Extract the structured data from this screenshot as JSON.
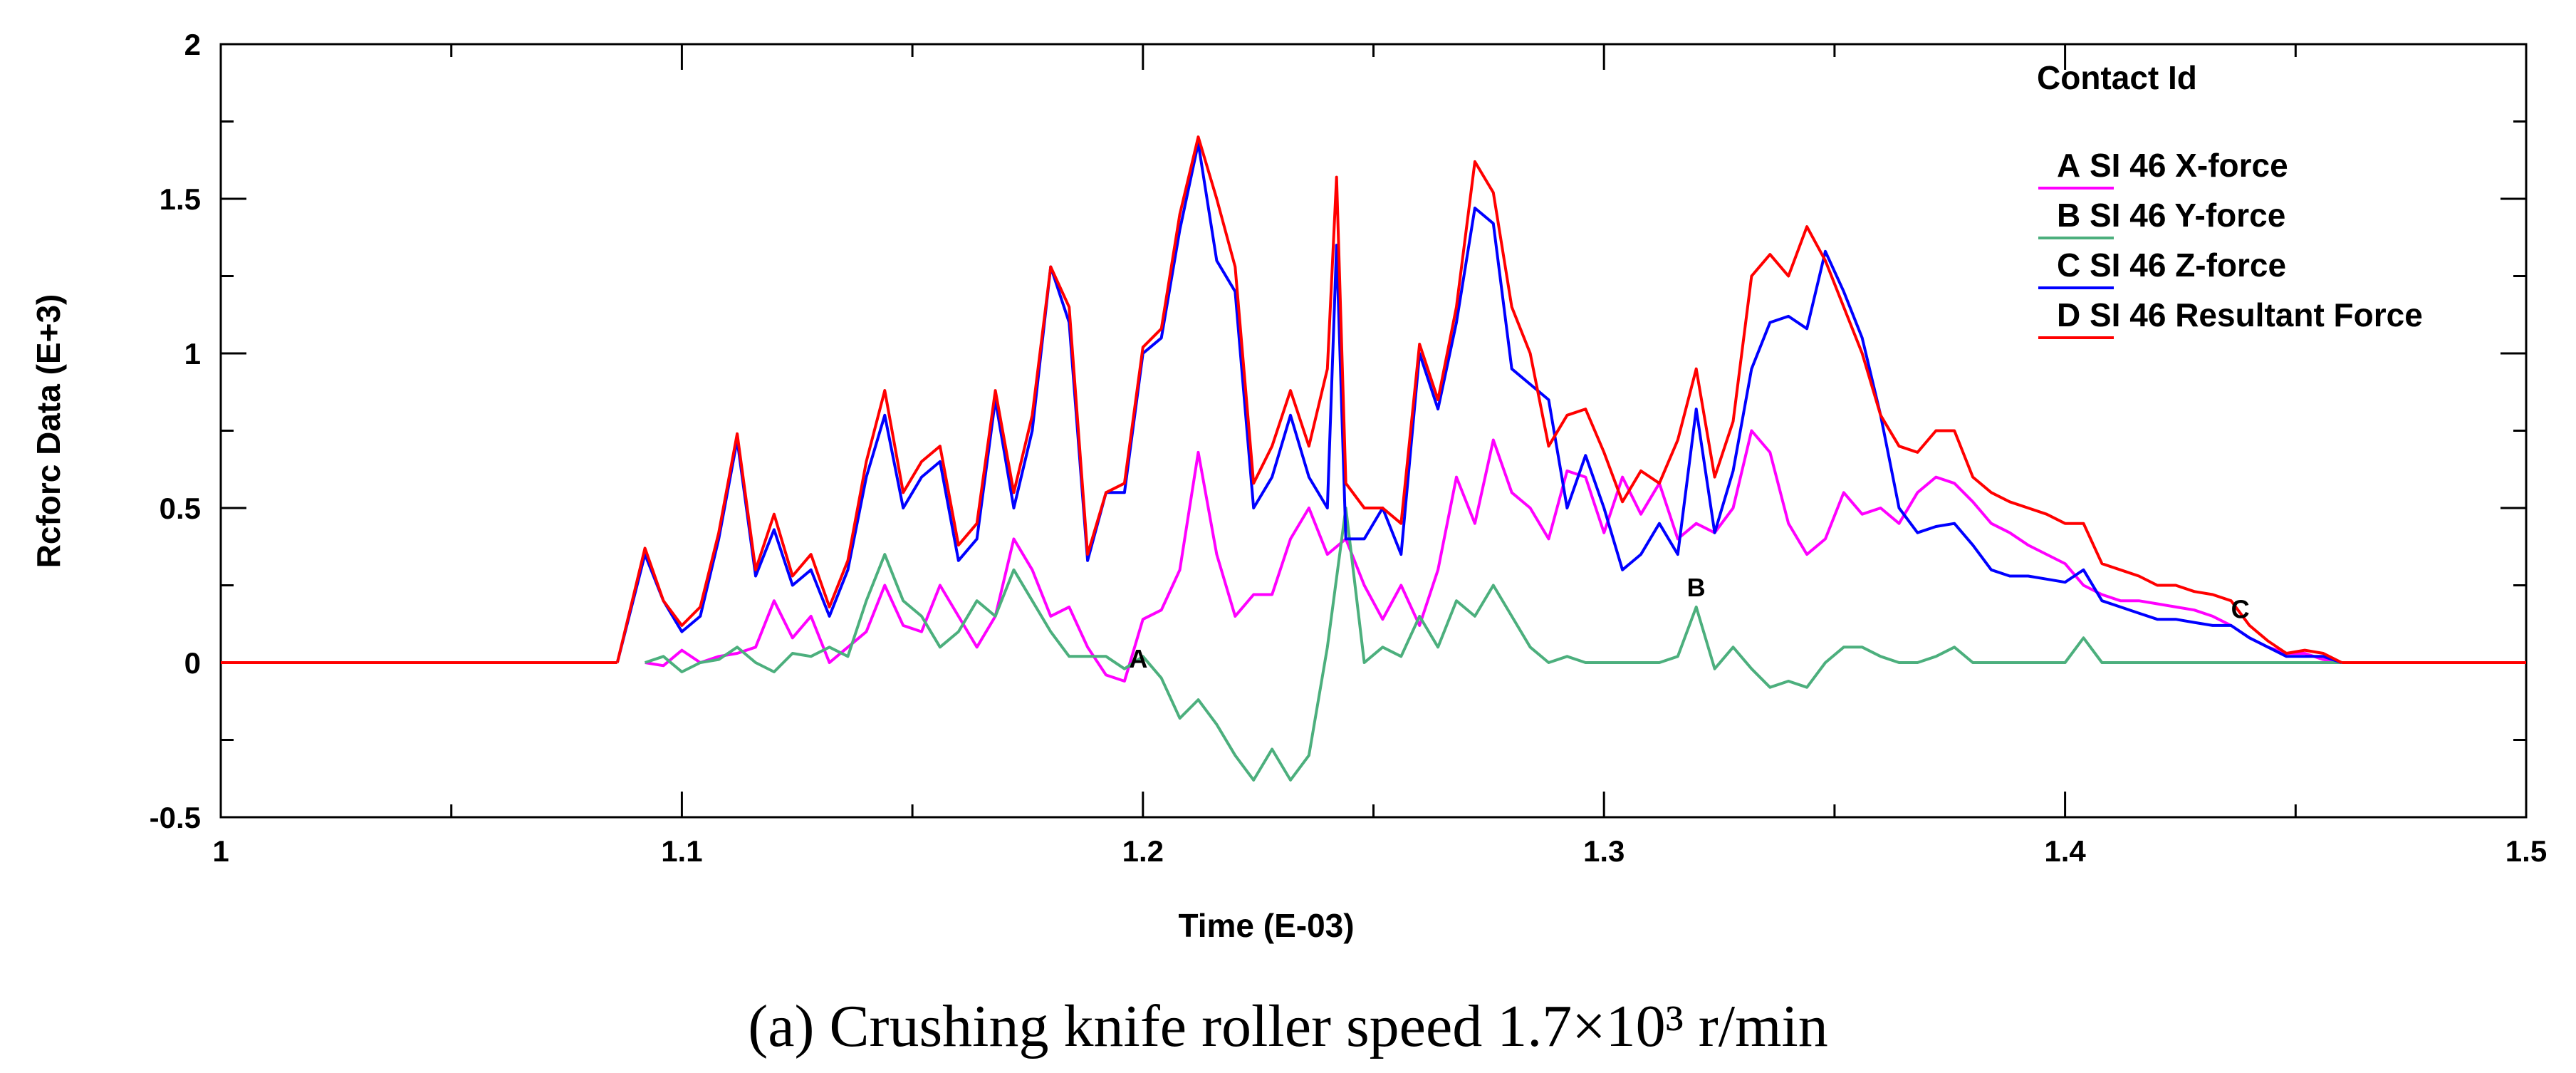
{
  "chart_data": {
    "type": "line",
    "xlabel": "Time (E-03)",
    "ylabel": "Rcforc Data (E+3)",
    "xlim": [
      1,
      1.5
    ],
    "ylim": [
      -0.5,
      2
    ],
    "xticks": [
      "1",
      "1.1",
      "1.2",
      "1.3",
      "1.4",
      "1.5"
    ],
    "yticks": [
      "-0.5",
      "0",
      "0.5",
      "1",
      "1.5",
      "2"
    ],
    "xtick_values": [
      1,
      1.1,
      1.2,
      1.3,
      1.4,
      1.5
    ],
    "ytick_values": [
      -0.5,
      0,
      0.5,
      1,
      1.5,
      2
    ],
    "legend_title": "Contact Id",
    "legend_position": "top-right",
    "caption": "(a) Crushing knife roller speed 1.7×10³ r/min",
    "series": [
      {
        "name": "SI 46 X-force",
        "letter": "A",
        "color": "#ff00ff",
        "marker_label": {
          "text": "A",
          "x": 1.199,
          "y": -0.03
        },
        "x": [
          1.092,
          1.096,
          1.1,
          1.104,
          1.108,
          1.112,
          1.116,
          1.12,
          1.124,
          1.128,
          1.132,
          1.136,
          1.14,
          1.144,
          1.148,
          1.152,
          1.156,
          1.16,
          1.164,
          1.168,
          1.172,
          1.176,
          1.18,
          1.184,
          1.188,
          1.192,
          1.196,
          1.2,
          1.204,
          1.208,
          1.212,
          1.216,
          1.22,
          1.224,
          1.228,
          1.232,
          1.236,
          1.24,
          1.244,
          1.248,
          1.252,
          1.256,
          1.26,
          1.264,
          1.268,
          1.272,
          1.276,
          1.28,
          1.284,
          1.288,
          1.292,
          1.296,
          1.3,
          1.304,
          1.308,
          1.312,
          1.316,
          1.32,
          1.324,
          1.328,
          1.332,
          1.336,
          1.34,
          1.344,
          1.348,
          1.352,
          1.356,
          1.36,
          1.364,
          1.368,
          1.372,
          1.376,
          1.38,
          1.384,
          1.388,
          1.392,
          1.396,
          1.4,
          1.404,
          1.408,
          1.412,
          1.416,
          1.42,
          1.424,
          1.428,
          1.432,
          1.436,
          1.44,
          1.444,
          1.448,
          1.452,
          1.456,
          1.46
        ],
        "values": [
          0,
          -0.01,
          0.04,
          0,
          0.02,
          0.03,
          0.05,
          0.2,
          0.08,
          0.15,
          0,
          0.05,
          0.1,
          0.25,
          0.12,
          0.1,
          0.25,
          0.15,
          0.05,
          0.15,
          0.4,
          0.3,
          0.15,
          0.18,
          0.05,
          -0.04,
          -0.06,
          0.14,
          0.17,
          0.3,
          0.68,
          0.35,
          0.15,
          0.22,
          0.22,
          0.4,
          0.5,
          0.35,
          0.4,
          0.25,
          0.14,
          0.25,
          0.12,
          0.3,
          0.6,
          0.45,
          0.72,
          0.55,
          0.5,
          0.4,
          0.62,
          0.6,
          0.42,
          0.6,
          0.48,
          0.58,
          0.4,
          0.45,
          0.42,
          0.5,
          0.75,
          0.68,
          0.45,
          0.35,
          0.4,
          0.55,
          0.48,
          0.5,
          0.45,
          0.55,
          0.6,
          0.58,
          0.52,
          0.45,
          0.42,
          0.38,
          0.35,
          0.32,
          0.25,
          0.22,
          0.2,
          0.2,
          0.19,
          0.18,
          0.17,
          0.15,
          0.12,
          0.08,
          0.05,
          0.03,
          0.03,
          0.01,
          0
        ]
      },
      {
        "name": "SI 46 Y-force",
        "letter": "B",
        "color": "#4caf7d",
        "marker_label": {
          "text": "B",
          "x": 1.32,
          "y": 0.2
        },
        "x": [
          1.092,
          1.096,
          1.1,
          1.104,
          1.108,
          1.112,
          1.116,
          1.12,
          1.124,
          1.128,
          1.132,
          1.136,
          1.14,
          1.144,
          1.148,
          1.152,
          1.156,
          1.16,
          1.164,
          1.168,
          1.172,
          1.176,
          1.18,
          1.184,
          1.188,
          1.192,
          1.196,
          1.2,
          1.204,
          1.208,
          1.212,
          1.216,
          1.22,
          1.224,
          1.228,
          1.232,
          1.236,
          1.24,
          1.244,
          1.248,
          1.252,
          1.256,
          1.26,
          1.264,
          1.268,
          1.272,
          1.276,
          1.28,
          1.284,
          1.288,
          1.292,
          1.296,
          1.3,
          1.304,
          1.308,
          1.312,
          1.316,
          1.32,
          1.324,
          1.328,
          1.332,
          1.336,
          1.34,
          1.344,
          1.348,
          1.352,
          1.356,
          1.36,
          1.364,
          1.368,
          1.372,
          1.376,
          1.38,
          1.384,
          1.388,
          1.392,
          1.396,
          1.4,
          1.404,
          1.408,
          1.412,
          1.416,
          1.42,
          1.424,
          1.428,
          1.432,
          1.436,
          1.44,
          1.444,
          1.448,
          1.452,
          1.456,
          1.46
        ],
        "values": [
          0,
          0.02,
          -0.03,
          0,
          0.01,
          0.05,
          0,
          -0.03,
          0.03,
          0.02,
          0.05,
          0.02,
          0.2,
          0.35,
          0.2,
          0.15,
          0.05,
          0.1,
          0.2,
          0.15,
          0.3,
          0.2,
          0.1,
          0.02,
          0.02,
          0.02,
          -0.02,
          0.02,
          -0.05,
          -0.18,
          -0.12,
          -0.2,
          -0.3,
          -0.38,
          -0.28,
          -0.38,
          -0.3,
          0.05,
          0.5,
          0,
          0.05,
          0.02,
          0.15,
          0.05,
          0.2,
          0.15,
          0.25,
          0.15,
          0.05,
          0,
          0.02,
          0,
          0,
          0,
          0,
          0,
          0.02,
          0.18,
          -0.02,
          0.05,
          -0.02,
          -0.08,
          -0.06,
          -0.08,
          0,
          0.05,
          0.05,
          0.02,
          0,
          0,
          0.02,
          0.05,
          0,
          0,
          0,
          0,
          0,
          0,
          0.08,
          0,
          0,
          0,
          0,
          0,
          0,
          0,
          0,
          0,
          0,
          0,
          0,
          0,
          0
        ]
      },
      {
        "name": "SI 46 Z-force",
        "letter": "C",
        "color": "#0000ff",
        "marker_label": {
          "text": "C",
          "x": 1.438,
          "y": 0.13
        },
        "x": [
          1.086,
          1.092,
          1.096,
          1.1,
          1.104,
          1.108,
          1.112,
          1.116,
          1.12,
          1.124,
          1.128,
          1.132,
          1.136,
          1.14,
          1.144,
          1.148,
          1.152,
          1.156,
          1.16,
          1.164,
          1.168,
          1.172,
          1.176,
          1.18,
          1.184,
          1.188,
          1.192,
          1.196,
          1.2,
          1.204,
          1.208,
          1.212,
          1.216,
          1.22,
          1.224,
          1.228,
          1.232,
          1.236,
          1.24,
          1.242,
          1.244,
          1.248,
          1.252,
          1.256,
          1.26,
          1.264,
          1.268,
          1.272,
          1.276,
          1.28,
          1.284,
          1.288,
          1.292,
          1.296,
          1.3,
          1.304,
          1.308,
          1.312,
          1.316,
          1.32,
          1.324,
          1.328,
          1.332,
          1.336,
          1.34,
          1.344,
          1.348,
          1.352,
          1.356,
          1.36,
          1.364,
          1.368,
          1.372,
          1.376,
          1.38,
          1.384,
          1.388,
          1.392,
          1.396,
          1.4,
          1.404,
          1.408,
          1.412,
          1.416,
          1.42,
          1.424,
          1.428,
          1.432,
          1.436,
          1.44,
          1.444,
          1.448,
          1.452,
          1.456,
          1.46
        ],
        "values": [
          0,
          0.35,
          0.2,
          0.1,
          0.15,
          0.4,
          0.72,
          0.28,
          0.43,
          0.25,
          0.3,
          0.15,
          0.3,
          0.6,
          0.8,
          0.5,
          0.6,
          0.65,
          0.33,
          0.4,
          0.85,
          0.5,
          0.75,
          1.28,
          1.1,
          0.33,
          0.55,
          0.55,
          1.0,
          1.05,
          1.4,
          1.68,
          1.3,
          1.2,
          0.5,
          0.6,
          0.8,
          0.6,
          0.5,
          1.35,
          0.4,
          0.4,
          0.5,
          0.35,
          1.0,
          0.82,
          1.1,
          1.47,
          1.42,
          0.95,
          0.9,
          0.85,
          0.5,
          0.67,
          0.5,
          0.3,
          0.35,
          0.45,
          0.35,
          0.82,
          0.42,
          0.62,
          0.95,
          1.1,
          1.12,
          1.08,
          1.33,
          1.2,
          1.05,
          0.8,
          0.5,
          0.42,
          0.44,
          0.45,
          0.38,
          0.3,
          0.28,
          0.28,
          0.27,
          0.26,
          0.3,
          0.2,
          0.18,
          0.16,
          0.14,
          0.14,
          0.13,
          0.12,
          0.12,
          0.08,
          0.05,
          0.02,
          0.02,
          0.02,
          0
        ]
      },
      {
        "name": "SI 46 Resultant Force",
        "letter": "D",
        "color": "#ff0000",
        "marker_label": null,
        "x": [
          1.086,
          1.092,
          1.096,
          1.1,
          1.104,
          1.108,
          1.112,
          1.116,
          1.12,
          1.124,
          1.128,
          1.132,
          1.136,
          1.14,
          1.144,
          1.148,
          1.152,
          1.156,
          1.16,
          1.164,
          1.168,
          1.172,
          1.176,
          1.18,
          1.184,
          1.188,
          1.192,
          1.196,
          1.2,
          1.204,
          1.208,
          1.212,
          1.216,
          1.22,
          1.224,
          1.228,
          1.232,
          1.236,
          1.24,
          1.242,
          1.244,
          1.248,
          1.252,
          1.256,
          1.26,
          1.264,
          1.268,
          1.272,
          1.276,
          1.28,
          1.284,
          1.288,
          1.292,
          1.296,
          1.3,
          1.304,
          1.308,
          1.312,
          1.316,
          1.32,
          1.324,
          1.328,
          1.332,
          1.336,
          1.34,
          1.344,
          1.348,
          1.352,
          1.356,
          1.36,
          1.364,
          1.368,
          1.372,
          1.376,
          1.38,
          1.384,
          1.388,
          1.392,
          1.396,
          1.4,
          1.404,
          1.408,
          1.412,
          1.416,
          1.42,
          1.424,
          1.428,
          1.432,
          1.436,
          1.44,
          1.444,
          1.448,
          1.452,
          1.456,
          1.46
        ],
        "values": [
          0,
          0.37,
          0.2,
          0.12,
          0.18,
          0.42,
          0.74,
          0.3,
          0.48,
          0.28,
          0.35,
          0.18,
          0.33,
          0.65,
          0.88,
          0.55,
          0.65,
          0.7,
          0.38,
          0.45,
          0.88,
          0.55,
          0.8,
          1.28,
          1.15,
          0.35,
          0.55,
          0.58,
          1.02,
          1.08,
          1.45,
          1.7,
          1.5,
          1.28,
          0.58,
          0.7,
          0.88,
          0.7,
          0.95,
          1.57,
          0.58,
          0.5,
          0.5,
          0.45,
          1.03,
          0.85,
          1.15,
          1.62,
          1.52,
          1.15,
          1.0,
          0.7,
          0.8,
          0.82,
          0.68,
          0.52,
          0.62,
          0.58,
          0.72,
          0.95,
          0.6,
          0.78,
          1.25,
          1.32,
          1.25,
          1.41,
          1.3,
          1.15,
          1.0,
          0.8,
          0.7,
          0.68,
          0.75,
          0.75,
          0.6,
          0.55,
          0.52,
          0.5,
          0.48,
          0.45,
          0.45,
          0.32,
          0.3,
          0.28,
          0.25,
          0.25,
          0.23,
          0.22,
          0.2,
          0.12,
          0.07,
          0.03,
          0.04,
          0.03,
          0
        ]
      }
    ]
  }
}
